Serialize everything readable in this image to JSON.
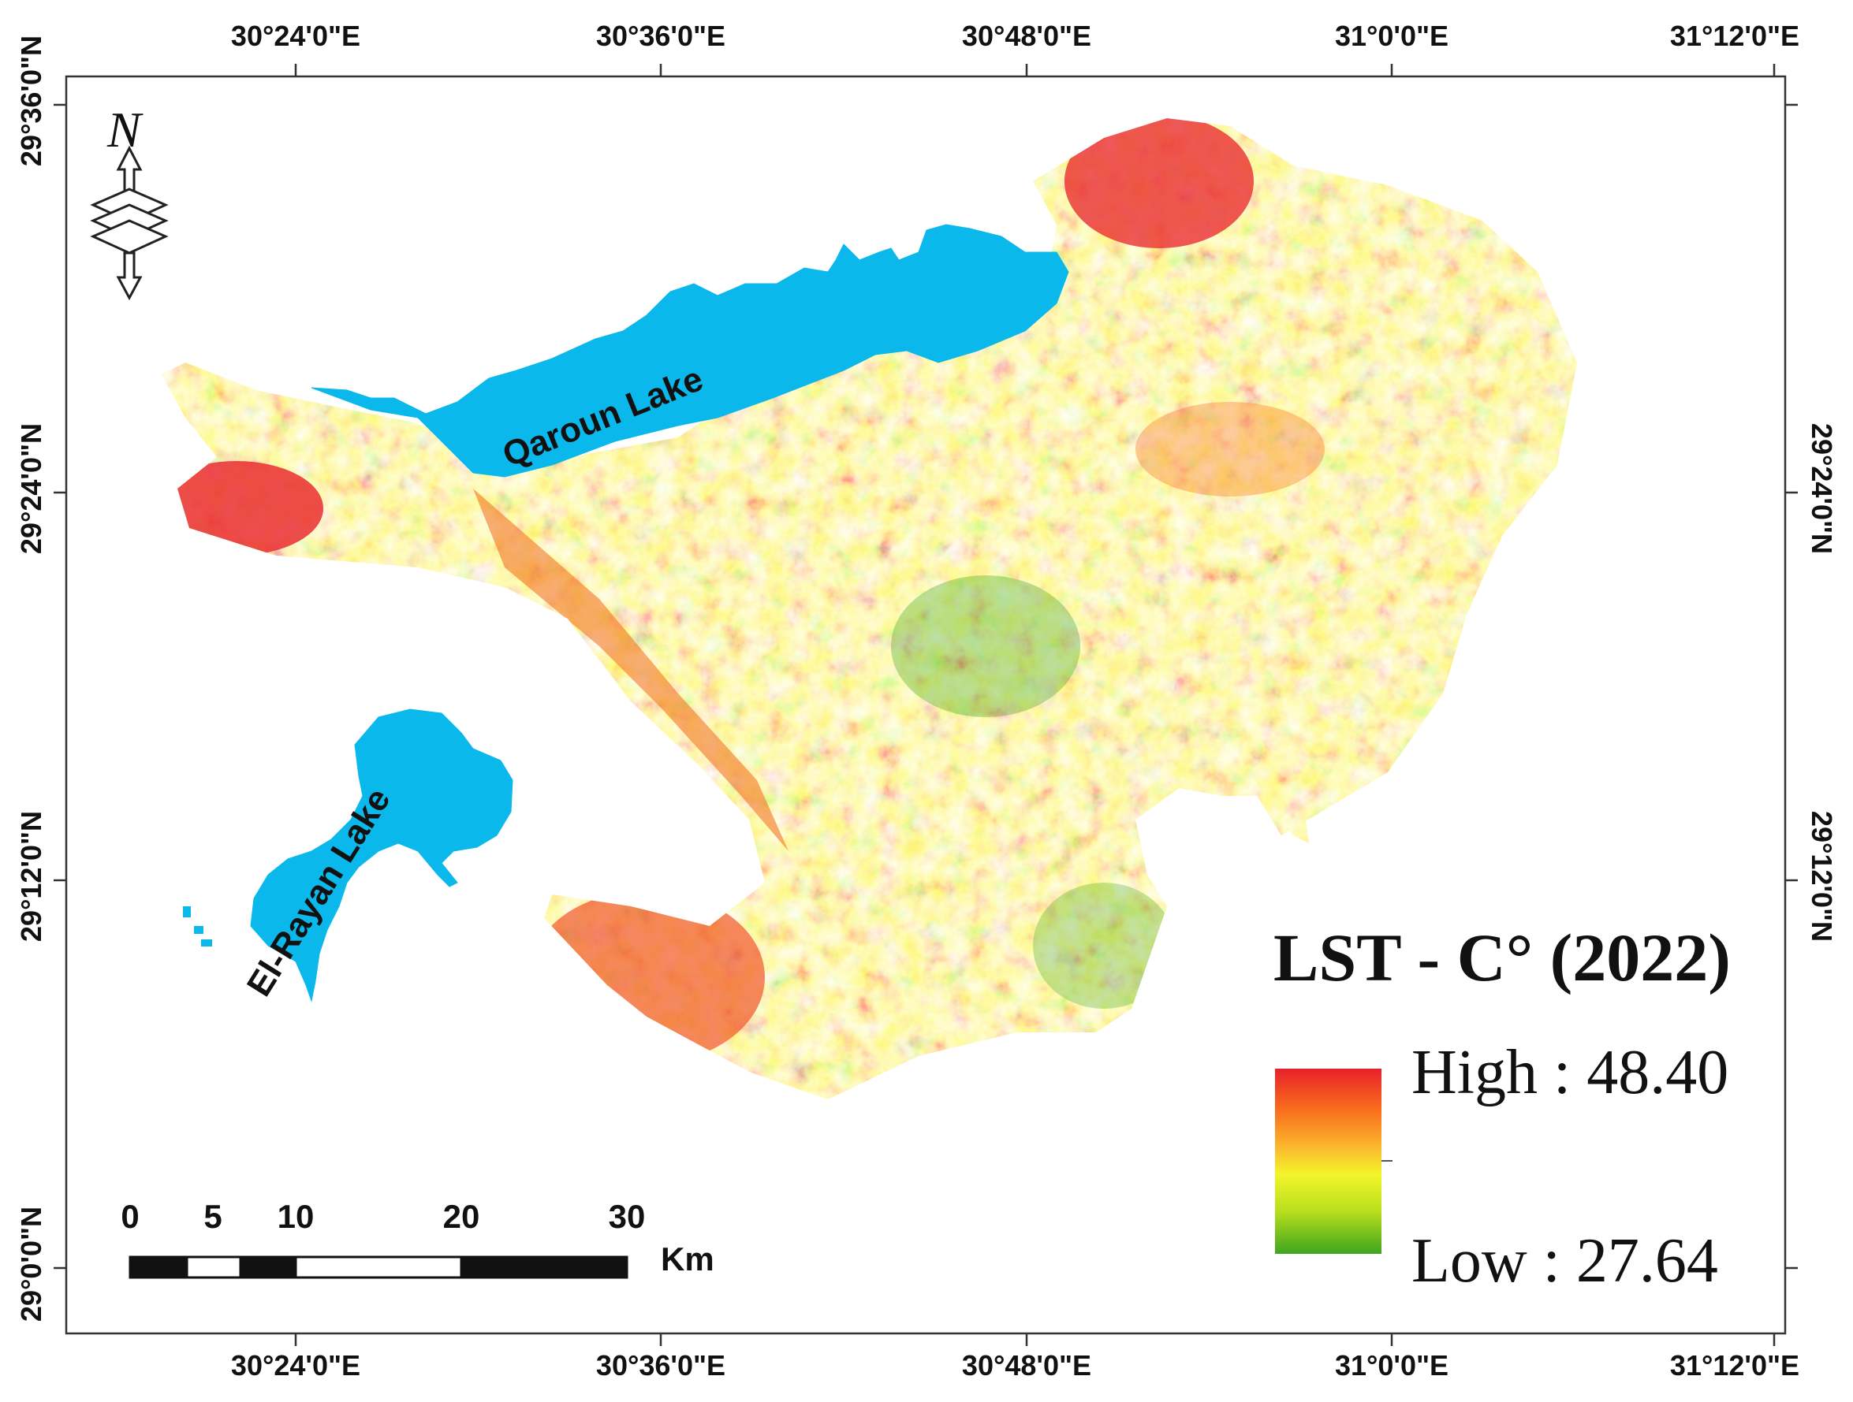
{
  "map": {
    "legend": {
      "title": "LST - C° (2022)",
      "high_label": "High : 48.40",
      "low_label": "Low : 27.64",
      "high_value": 48.4,
      "low_value": 27.64,
      "colors": [
        "#e8202a",
        "#f86d1c",
        "#fbb62e",
        "#f3f52a",
        "#b9df1d",
        "#3ea51e"
      ]
    },
    "lakes": [
      {
        "name": "Qaroun Lake"
      },
      {
        "name": "El-Rayan Lake"
      }
    ],
    "lake_color": "#0ab8ec",
    "north_arrow": {
      "letter": "N",
      "icon": "north-arrow-icon"
    },
    "scale_bar": {
      "labels": [
        "0",
        "5",
        "10",
        "20",
        "30"
      ],
      "unit": "Km"
    },
    "graticule": {
      "longitudes": [
        "30°24'0\"E",
        "30°36'0\"E",
        "30°48'0\"E",
        "31°0'0\"E",
        "31°12'0\"E"
      ],
      "latitudes": [
        "29°36'0\"N",
        "29°24'0\"N",
        "29°12'0\"N",
        "29°0'0\"N"
      ]
    }
  }
}
